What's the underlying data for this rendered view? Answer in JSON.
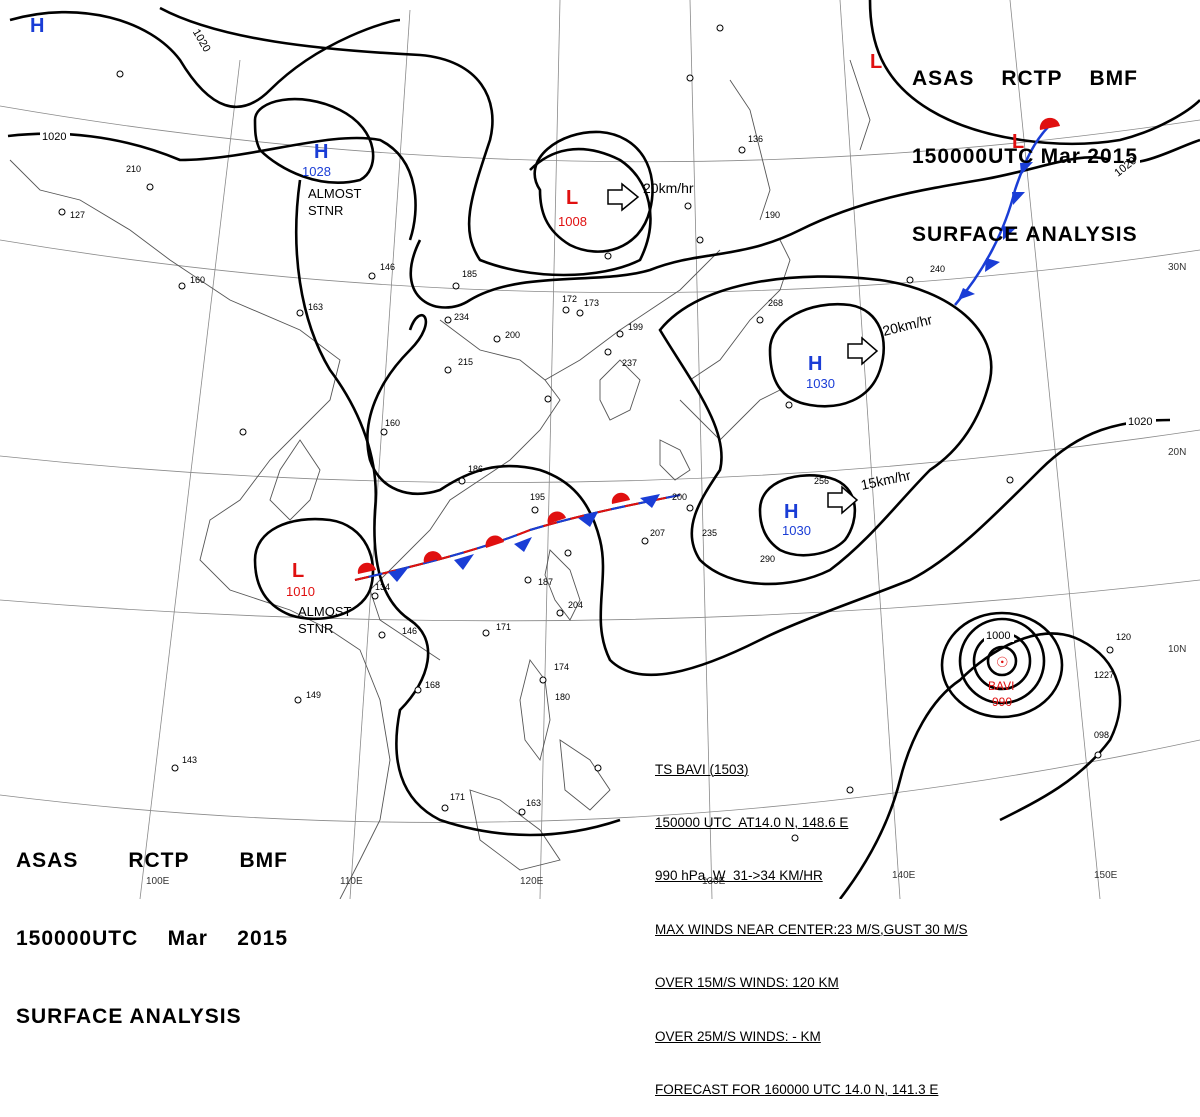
{
  "header": {
    "agency": "ASAS",
    "station": "RCTP",
    "office": "BMF",
    "time": "150000UTC",
    "month": "Mar",
    "year": "2015",
    "title": "SURFACE ANALYSIS"
  },
  "isobars": {
    "labels": [
      "1020",
      "1020",
      "1020",
      "1020",
      "1000"
    ]
  },
  "pressure_centers": [
    {
      "type": "H",
      "value": "1028",
      "note": "ALMOST STNR",
      "color": "#1a3dd6"
    },
    {
      "type": "L",
      "value": "1008",
      "note": "",
      "color": "#e01010"
    },
    {
      "type": "H",
      "value": "1030",
      "note": "",
      "color": "#1a3dd6"
    },
    {
      "type": "H",
      "value": "1030",
      "note": "",
      "color": "#1a3dd6"
    },
    {
      "type": "L",
      "value": "1010",
      "note": "ALMOST STNR",
      "color": "#e01010"
    },
    {
      "type": "L",
      "value": "",
      "note": "",
      "color": "#e01010"
    },
    {
      "type": "L",
      "value": "",
      "note": "",
      "color": "#e01010"
    },
    {
      "type": "H",
      "value": "",
      "note": "",
      "color": "#1a3dd6"
    }
  ],
  "movements": [
    "20km/hr",
    "20km/hr",
    "15km/hr"
  ],
  "storm": {
    "name": "BAVI",
    "pressure": "990",
    "color": "#e01010",
    "bulletin": [
      "TS BAVI (1503)",
      "150000 UTC  AT14.0 N, 148.6 E",
      "990 hPa, W  31->34 KM/HR",
      "MAX WINDS NEAR CENTER:23 M/S,GUST 30 M/S",
      "OVER 15M/S WINDS: 120 KM",
      "OVER 25M/S WINDS: - KM",
      "FORECAST FOR 160000 UTC 14.0 N, 141.3 E"
    ]
  },
  "grid_labels": {
    "lon": [
      "100E",
      "110E",
      "120E",
      "130E",
      "140E",
      "150E"
    ],
    "lat": [
      "30N",
      "20N",
      "10N"
    ]
  },
  "station_samples": [
    "210",
    "127",
    "160",
    "163",
    "146",
    "185",
    "234",
    "200",
    "215",
    "172",
    "173",
    "199",
    "237",
    "136",
    "190",
    "240",
    "268",
    "160",
    "186",
    "195",
    "200",
    "207",
    "235",
    "256",
    "290",
    "134",
    "146",
    "171",
    "187",
    "204",
    "168",
    "149",
    "143",
    "171",
    "163",
    "174",
    "180",
    "120",
    "098",
    "1227"
  ],
  "colors": {
    "high": "#1a3dd6",
    "low": "#e01010",
    "isobar": "#000000",
    "geo": "#555555"
  }
}
